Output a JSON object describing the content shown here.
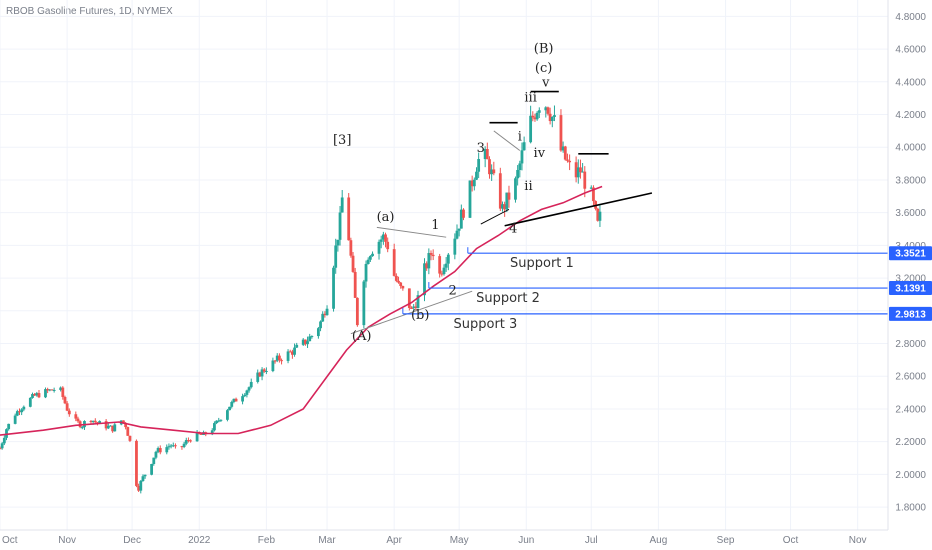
{
  "chart_data": {
    "type": "candlestick",
    "title": "RBOB Gasoline Futures, 1D, NYMEX",
    "y_ticks": [
      "1.8000",
      "2.0000",
      "2.2000",
      "2.4000",
      "2.6000",
      "2.8000",
      "3.0000",
      "3.2000",
      "3.4000",
      "3.6000",
      "3.8000",
      "4.0000",
      "4.2000",
      "4.4000",
      "4.6000",
      "4.8000"
    ],
    "y_tick_values": [
      1.8,
      2.0,
      2.2,
      2.4,
      2.6,
      2.8,
      3.0,
      3.2,
      3.4,
      3.6,
      3.8,
      4.0,
      4.2,
      4.4,
      4.6,
      4.8
    ],
    "ylim": [
      1.66,
      4.9
    ],
    "x_ticks": [
      {
        "label": "Oct",
        "t": 0
      },
      {
        "label": "Nov",
        "t": 31
      },
      {
        "label": "Dec",
        "t": 61
      },
      {
        "label": "2022",
        "t": 92
      },
      {
        "label": "Feb",
        "t": 123
      },
      {
        "label": "Mar",
        "t": 151
      },
      {
        "label": "Apr",
        "t": 182
      },
      {
        "label": "May",
        "t": 212
      },
      {
        "label": "Jun",
        "t": 243
      },
      {
        "label": "Jul",
        "t": 273
      },
      {
        "label": "Aug",
        "t": 304
      },
      {
        "label": "Sep",
        "t": 335
      },
      {
        "label": "Oct",
        "t": 365
      },
      {
        "label": "Nov",
        "t": 396
      }
    ],
    "xlim": [
      0,
      410
    ],
    "price_path": [
      [
        0,
        2.16
      ],
      [
        3,
        2.28
      ],
      [
        7,
        2.37
      ],
      [
        12,
        2.44
      ],
      [
        16,
        2.48
      ],
      [
        20,
        2.5
      ],
      [
        25,
        2.52
      ],
      [
        28,
        2.51
      ],
      [
        31,
        2.4
      ],
      [
        34,
        2.33
      ],
      [
        38,
        2.3
      ],
      [
        41,
        2.35
      ],
      [
        44,
        2.32
      ],
      [
        48,
        2.3
      ],
      [
        52,
        2.28
      ],
      [
        56,
        2.33
      ],
      [
        58,
        2.3
      ],
      [
        60,
        2.2
      ],
      [
        62,
        1.97
      ],
      [
        64,
        1.92
      ],
      [
        66,
        1.98
      ],
      [
        69,
        2.05
      ],
      [
        72,
        2.14
      ],
      [
        76,
        2.16
      ],
      [
        79,
        2.18
      ],
      [
        82,
        2.14
      ],
      [
        86,
        2.2
      ],
      [
        90,
        2.24
      ],
      [
        94,
        2.24
      ],
      [
        98,
        2.28
      ],
      [
        102,
        2.35
      ],
      [
        106,
        2.42
      ],
      [
        110,
        2.47
      ],
      [
        114,
        2.52
      ],
      [
        117,
        2.56
      ],
      [
        120,
        2.62
      ],
      [
        124,
        2.66
      ],
      [
        128,
        2.7
      ],
      [
        132,
        2.73
      ],
      [
        136,
        2.76
      ],
      [
        140,
        2.8
      ],
      [
        145,
        2.86
      ],
      [
        148,
        2.93
      ],
      [
        151,
        3.05
      ],
      [
        154,
        3.3
      ],
      [
        157,
        3.55
      ],
      [
        159,
        3.82
      ],
      [
        160,
        3.72
      ],
      [
        161,
        3.45
      ],
      [
        163,
        3.2
      ],
      [
        165,
        2.93
      ],
      [
        167,
        3.15
      ],
      [
        170,
        3.35
      ],
      [
        174,
        3.42
      ],
      [
        177,
        3.45
      ],
      [
        179,
        3.4
      ],
      [
        181,
        3.25
      ],
      [
        184,
        3.15
      ],
      [
        187,
        3.1
      ],
      [
        190,
        3.0
      ],
      [
        193,
        3.08
      ],
      [
        196,
        3.25
      ],
      [
        199,
        3.35
      ],
      [
        201,
        3.38
      ],
      [
        203,
        3.22
      ],
      [
        205,
        3.3
      ],
      [
        208,
        3.4
      ],
      [
        211,
        3.5
      ],
      [
        214,
        3.62
      ],
      [
        217,
        3.74
      ],
      [
        220,
        3.9
      ],
      [
        223,
        3.96
      ],
      [
        226,
        3.88
      ],
      [
        229,
        3.74
      ],
      [
        232,
        3.62
      ],
      [
        235,
        3.7
      ],
      [
        238,
        3.78
      ],
      [
        241,
        3.95
      ],
      [
        244,
        4.12
      ],
      [
        247,
        4.22
      ],
      [
        250,
        4.3
      ],
      [
        253,
        4.25
      ],
      [
        256,
        4.15
      ],
      [
        259,
        3.98
      ],
      [
        262,
        3.9
      ],
      [
        265,
        3.82
      ],
      [
        268,
        3.86
      ],
      [
        271,
        3.76
      ],
      [
        273,
        3.7
      ],
      [
        276,
        3.52
      ],
      [
        278,
        3.62
      ]
    ],
    "ma_path": [
      [
        0,
        2.24
      ],
      [
        20,
        2.27
      ],
      [
        35,
        2.3
      ],
      [
        55,
        2.32
      ],
      [
        65,
        2.29
      ],
      [
        80,
        2.27
      ],
      [
        95,
        2.25
      ],
      [
        110,
        2.25
      ],
      [
        125,
        2.3
      ],
      [
        140,
        2.4
      ],
      [
        150,
        2.58
      ],
      [
        160,
        2.76
      ],
      [
        170,
        2.9
      ],
      [
        180,
        2.98
      ],
      [
        190,
        3.05
      ],
      [
        200,
        3.15
      ],
      [
        210,
        3.24
      ],
      [
        220,
        3.38
      ],
      [
        230,
        3.46
      ],
      [
        240,
        3.55
      ],
      [
        250,
        3.62
      ],
      [
        260,
        3.66
      ],
      [
        270,
        3.72
      ],
      [
        278,
        3.76
      ]
    ],
    "wave_labels": [
      {
        "text": "[3]",
        "t": 158,
        "v": 4.02
      },
      {
        "text": "(a)",
        "t": 178,
        "v": 3.55
      },
      {
        "text": "1",
        "t": 201,
        "v": 3.5
      },
      {
        "text": "(A)",
        "t": 167,
        "v": 2.82
      },
      {
        "text": "(b)",
        "t": 194,
        "v": 2.95
      },
      {
        "text": "2",
        "t": 209,
        "v": 3.1
      },
      {
        "text": "3",
        "t": 222,
        "v": 3.97
      },
      {
        "text": "4",
        "t": 237,
        "v": 3.48
      },
      {
        "text": "i",
        "t": 240,
        "v": 4.04
      },
      {
        "text": "ii",
        "t": 244,
        "v": 3.74
      },
      {
        "text": "iv",
        "t": 249,
        "v": 3.94
      },
      {
        "text": "iii",
        "t": 245,
        "v": 4.28
      },
      {
        "text": "v",
        "t": 252,
        "v": 4.37
      },
      {
        "text": "(c)",
        "t": 251,
        "v": 4.46
      },
      {
        "text": "(B)",
        "t": 251,
        "v": 4.58
      }
    ],
    "trendlines": [
      {
        "from": [
          162,
          2.86
        ],
        "to": [
          218,
          3.12
        ]
      },
      {
        "from": [
          174,
          3.51
        ],
        "to": [
          206,
          3.45
        ]
      },
      {
        "from": [
          233,
          3.52
        ],
        "to": [
          301,
          3.72
        ]
      },
      {
        "from": [
          222,
          3.53
        ],
        "to": [
          235,
          3.62
        ]
      },
      {
        "from": [
          228,
          4.1
        ],
        "to": [
          240,
          3.98
        ]
      }
    ],
    "top_marks": [
      {
        "from": [
          226,
          4.15
        ],
        "to": [
          239,
          4.15
        ]
      },
      {
        "from": [
          245,
          4.34
        ],
        "to": [
          258,
          4.34
        ]
      },
      {
        "from": [
          267,
          3.96
        ],
        "to": [
          281,
          3.96
        ]
      }
    ],
    "support_levels": [
      {
        "name": "Support 1",
        "value": 3.3521,
        "label": "3.3521",
        "from_t": 216
      },
      {
        "name": "Support 2",
        "value": 3.1391,
        "label": "3.1391",
        "from_t": 198
      },
      {
        "name": "Support 3",
        "value": 2.9813,
        "label": "2.9813",
        "from_t": 186
      }
    ],
    "colors": {
      "up": "#26a69a",
      "down": "#ef5350",
      "ma": "#d6245a",
      "support": "#2962ff",
      "trend": "#000000",
      "grid": "#f0f3fa"
    }
  }
}
